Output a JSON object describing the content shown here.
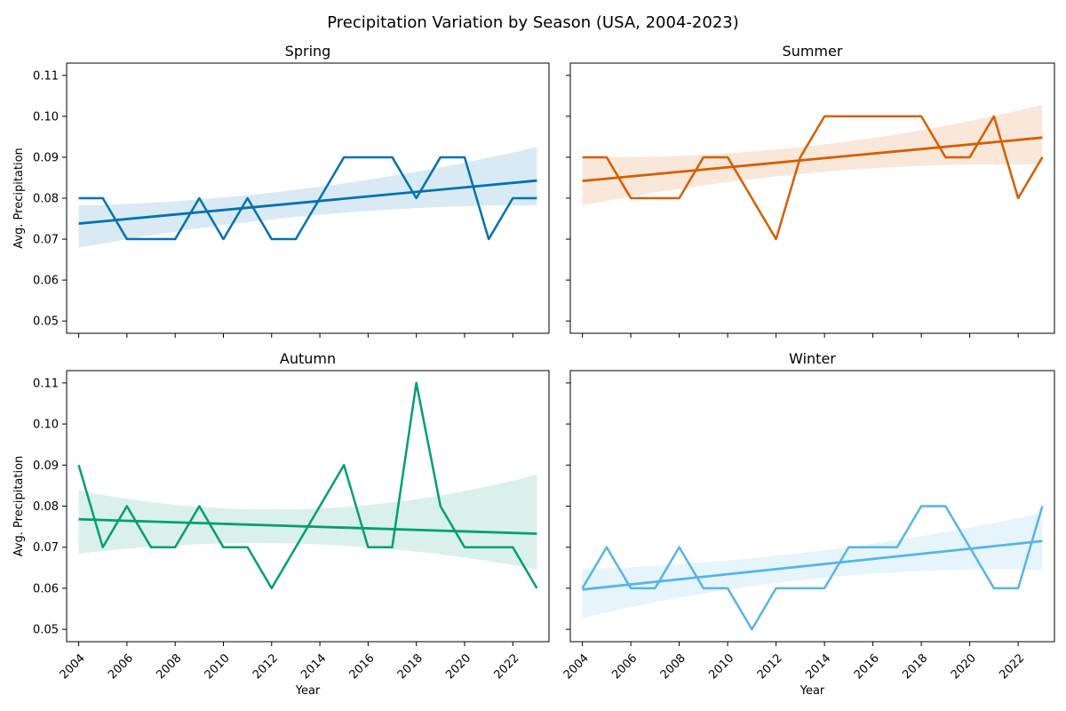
{
  "figure": {
    "title": "Precipitation Variation by Season (USA, 2004-2023)",
    "bg": "#ffffff"
  },
  "chart_data": [
    {
      "type": "line",
      "title": "Spring",
      "xlabel": "",
      "ylabel": "Avg. Precipitation",
      "color": "#0072b2",
      "x": [
        2004,
        2005,
        2006,
        2007,
        2008,
        2009,
        2010,
        2011,
        2012,
        2013,
        2014,
        2015,
        2016,
        2017,
        2018,
        2019,
        2020,
        2021,
        2022,
        2023
      ],
      "series": [
        {
          "values": [
            0.08,
            0.08,
            0.07,
            0.07,
            0.07,
            0.08,
            0.07,
            0.08,
            0.07,
            0.07,
            0.08,
            0.09,
            0.09,
            0.09,
            0.08,
            0.09,
            0.09,
            0.07,
            0.08,
            0.08
          ]
        }
      ],
      "trend": [
        0.0738,
        0.0843
      ],
      "ci_lower": [
        0.0679,
        0.0783
      ],
      "ci_upper": [
        0.0782,
        0.0925
      ],
      "ci_mid_x": 2013.5,
      "ci_mid": [
        0.0757,
        0.0824
      ],
      "xlim": [
        2003.5,
        2023.5
      ],
      "ylim": [
        0.047,
        0.113
      ],
      "xticks": [
        2004,
        2006,
        2008,
        2010,
        2012,
        2014,
        2016,
        2018,
        2020,
        2022
      ],
      "yticks": [
        "0.05",
        "0.06",
        "0.07",
        "0.08",
        "0.09",
        "0.10",
        "0.11"
      ],
      "show_x_ticklabels": false,
      "show_y_ticklabels": true,
      "grid": false
    },
    {
      "type": "line",
      "title": "Summer",
      "xlabel": "",
      "ylabel": "",
      "color": "#d55e00",
      "x": [
        2004,
        2005,
        2006,
        2007,
        2008,
        2009,
        2010,
        2011,
        2012,
        2013,
        2014,
        2015,
        2016,
        2017,
        2018,
        2019,
        2020,
        2021,
        2022,
        2023
      ],
      "series": [
        {
          "values": [
            0.09,
            0.09,
            0.08,
            0.08,
            0.08,
            0.09,
            0.09,
            0.08,
            0.07,
            0.09,
            0.1,
            0.1,
            0.1,
            0.1,
            0.1,
            0.09,
            0.09,
            0.1,
            0.08,
            0.09
          ]
        }
      ],
      "trend": [
        0.0842,
        0.0948
      ],
      "ci_lower": [
        0.0782,
        0.0882
      ],
      "ci_upper": [
        0.0901,
        0.1028
      ],
      "ci_mid_x": 2013.5,
      "ci_mid": [
        0.0862,
        0.0928
      ],
      "xlim": [
        2003.5,
        2023.5
      ],
      "ylim": [
        0.047,
        0.113
      ],
      "xticks": [
        2004,
        2006,
        2008,
        2010,
        2012,
        2014,
        2016,
        2018,
        2020,
        2022
      ],
      "yticks": [
        "0.05",
        "0.06",
        "0.07",
        "0.08",
        "0.09",
        "0.10",
        "0.11"
      ],
      "show_x_ticklabels": false,
      "show_y_ticklabels": false,
      "grid": false
    },
    {
      "type": "line",
      "title": "Autumn",
      "xlabel": "Year",
      "ylabel": "Avg. Precipitation",
      "color": "#009e73",
      "x": [
        2004,
        2005,
        2006,
        2007,
        2008,
        2009,
        2010,
        2011,
        2012,
        2013,
        2014,
        2015,
        2016,
        2017,
        2018,
        2019,
        2020,
        2021,
        2022,
        2023
      ],
      "series": [
        {
          "values": [
            0.09,
            0.07,
            0.08,
            0.07,
            0.07,
            0.08,
            0.07,
            0.07,
            0.06,
            0.07,
            0.08,
            0.09,
            0.07,
            0.07,
            0.11,
            0.08,
            0.07,
            0.07,
            0.07,
            0.06
          ]
        }
      ],
      "trend": [
        0.0768,
        0.0733
      ],
      "ci_lower": [
        0.0684,
        0.0646
      ],
      "ci_upper": [
        0.0838,
        0.0877
      ],
      "ci_mid_x": 2013.5,
      "ci_mid": [
        0.0708,
        0.0793
      ],
      "xlim": [
        2003.5,
        2023.5
      ],
      "ylim": [
        0.047,
        0.113
      ],
      "xticks": [
        2004,
        2006,
        2008,
        2010,
        2012,
        2014,
        2016,
        2018,
        2020,
        2022
      ],
      "yticks": [
        "0.05",
        "0.06",
        "0.07",
        "0.08",
        "0.09",
        "0.10",
        "0.11"
      ],
      "show_x_ticklabels": true,
      "show_y_ticklabels": true,
      "grid": false
    },
    {
      "type": "line",
      "title": "Winter",
      "xlabel": "Year",
      "ylabel": "",
      "color": "#56b4e9",
      "x": [
        2004,
        2005,
        2006,
        2007,
        2008,
        2009,
        2010,
        2011,
        2012,
        2013,
        2014,
        2015,
        2016,
        2017,
        2018,
        2019,
        2020,
        2021,
        2022,
        2023
      ],
      "series": [
        {
          "values": [
            0.06,
            0.07,
            0.06,
            0.06,
            0.07,
            0.06,
            0.06,
            0.05,
            0.06,
            0.06,
            0.06,
            0.07,
            0.07,
            0.07,
            0.08,
            0.08,
            0.07,
            0.06,
            0.06,
            0.08
          ]
        }
      ],
      "trend": [
        0.0597,
        0.0715
      ],
      "ci_lower": [
        0.0528,
        0.0645
      ],
      "ci_upper": [
        0.0647,
        0.0783
      ],
      "ci_mid_x": 2013.5,
      "ci_mid": [
        0.0623,
        0.0689
      ],
      "xlim": [
        2003.5,
        2023.5
      ],
      "ylim": [
        0.047,
        0.113
      ],
      "xticks": [
        2004,
        2006,
        2008,
        2010,
        2012,
        2014,
        2016,
        2018,
        2020,
        2022
      ],
      "yticks": [
        "0.05",
        "0.06",
        "0.07",
        "0.08",
        "0.09",
        "0.10",
        "0.11"
      ],
      "show_x_ticklabels": true,
      "show_y_ticklabels": false,
      "grid": false
    }
  ]
}
